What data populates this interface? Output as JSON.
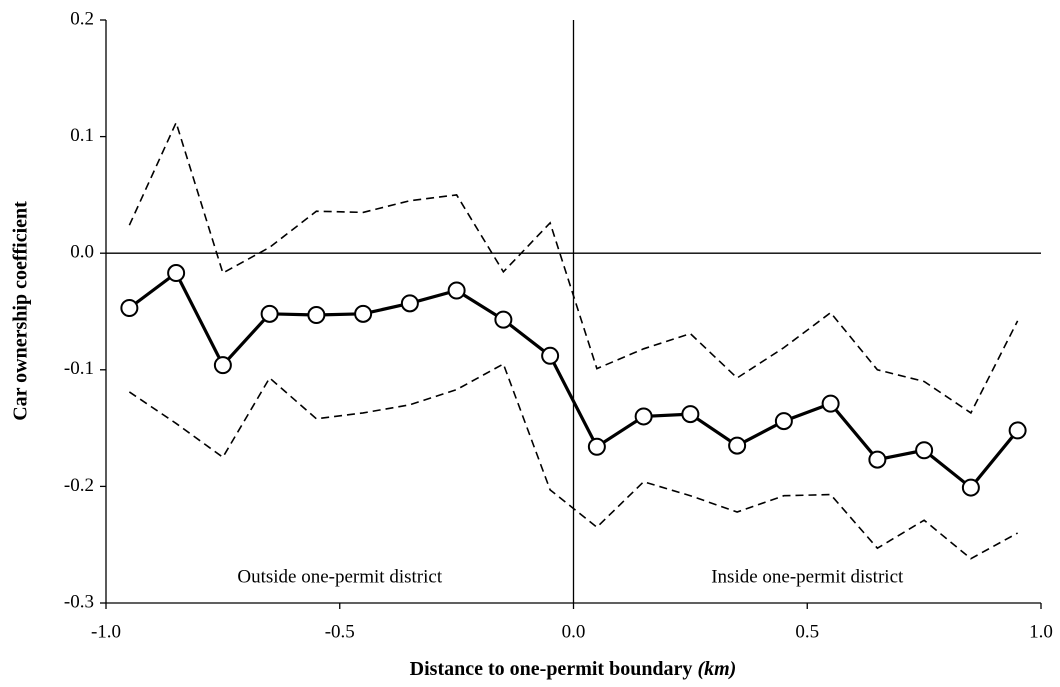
{
  "chart_data": {
    "type": "line",
    "x_label": "Distance to one-permit boundary",
    "x_unit": "(km)",
    "y_label": "Car ownership coefficient",
    "annotations": [
      "Outside one-permit district",
      "Inside one-permit district"
    ],
    "x": [
      -0.95,
      -0.85,
      -0.75,
      -0.65,
      -0.55,
      -0.45,
      -0.35,
      -0.25,
      -0.15,
      -0.05,
      0.05,
      0.15,
      0.25,
      0.35,
      0.45,
      0.55,
      0.65,
      0.75,
      0.85,
      0.95
    ],
    "series": [
      {
        "color": "#000000",
        "style": "solid",
        "markers": true,
        "values": [
          -0.047,
          -0.017,
          -0.096,
          -0.052,
          -0.053,
          -0.052,
          -0.043,
          -0.032,
          -0.057,
          -0.088,
          -0.166,
          -0.14,
          -0.138,
          -0.165,
          -0.144,
          -0.129,
          -0.177,
          -0.169,
          -0.201,
          -0.152
        ]
      },
      {
        "color": "#000000",
        "style": "dashed",
        "markers": false,
        "values": [
          0.024,
          0.112,
          -0.017,
          0.005,
          0.036,
          0.035,
          0.045,
          0.05,
          -0.016,
          0.026,
          -0.099,
          -0.082,
          -0.069,
          -0.107,
          -0.081,
          -0.051,
          -0.1,
          -0.11,
          -0.137,
          -0.058
        ]
      },
      {
        "color": "#000000",
        "style": "dashed",
        "markers": false,
        "values": [
          -0.119,
          -0.146,
          -0.175,
          -0.107,
          -0.142,
          -0.137,
          -0.13,
          -0.117,
          -0.095,
          -0.203,
          -0.235,
          -0.196,
          -0.208,
          -0.222,
          -0.208,
          -0.207,
          -0.253,
          -0.229,
          -0.262,
          -0.24
        ]
      }
    ],
    "xlim": [
      -1.0,
      1.0
    ],
    "ylim": [
      -0.3,
      0.2
    ],
    "xticks": [
      {
        "value": -1.0,
        "label": "-1.0"
      },
      -0.5,
      {
        "value": 0,
        "label": "0.0"
      },
      0.5,
      {
        "value": 1.0,
        "label": "1.0"
      }
    ],
    "yticks": [
      -0.3,
      -0.2,
      -0.1,
      {
        "value": 0,
        "label": "0.0"
      },
      0.1,
      0.2
    ],
    "zero_lines": true,
    "grid": false
  }
}
